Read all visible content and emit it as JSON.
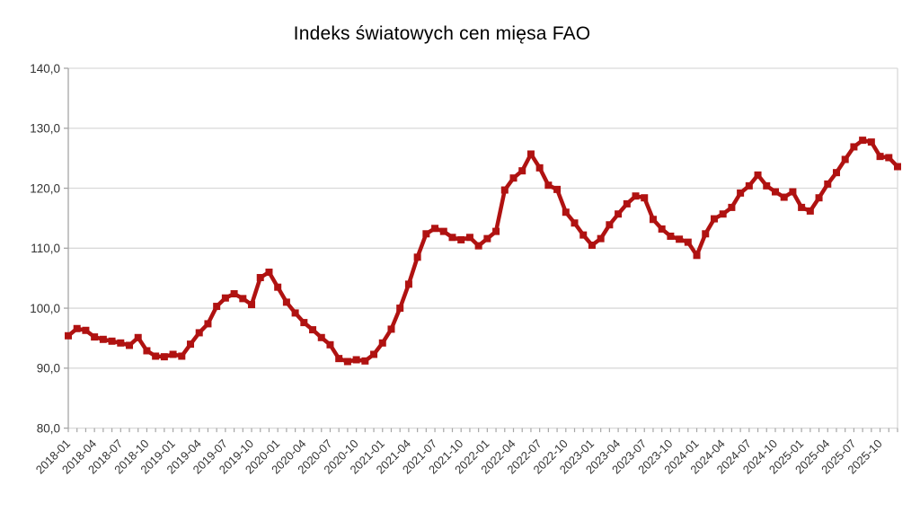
{
  "title": "Indeks światowych cen mięsa FAO",
  "chart_data": {
    "type": "line",
    "title": "Indeks światowych cen mięsa FAO",
    "x": [
      "2018-01",
      "2018-02",
      "2018-03",
      "2018-04",
      "2018-05",
      "2018-06",
      "2018-07",
      "2018-08",
      "2018-09",
      "2018-10",
      "2018-11",
      "2018-12",
      "2019-01",
      "2019-02",
      "2019-03",
      "2019-04",
      "2019-05",
      "2019-06",
      "2019-07",
      "2019-08",
      "2019-09",
      "2019-10",
      "2019-11",
      "2019-12",
      "2020-01",
      "2020-02",
      "2020-03",
      "2020-04",
      "2020-05",
      "2020-06",
      "2020-07",
      "2020-08",
      "2020-09",
      "2020-10",
      "2020-11",
      "2020-12",
      "2021-01",
      "2021-02",
      "2021-03",
      "2021-04",
      "2021-05",
      "2021-06",
      "2021-07",
      "2021-08",
      "2021-09",
      "2021-10",
      "2021-11",
      "2021-12",
      "2022-01",
      "2022-02",
      "2022-03",
      "2022-04",
      "2022-05",
      "2022-06",
      "2022-07",
      "2022-08",
      "2022-09",
      "2022-10",
      "2022-11",
      "2022-12",
      "2023-01",
      "2023-02",
      "2023-03",
      "2023-04",
      "2023-05",
      "2023-06",
      "2023-07",
      "2023-08",
      "2023-09",
      "2023-10",
      "2023-11",
      "2023-12",
      "2024-01",
      "2024-02",
      "2024-03",
      "2024-04",
      "2024-05",
      "2024-06",
      "2024-07",
      "2024-08",
      "2024-09",
      "2024-10",
      "2024-11",
      "2024-12",
      "2025-01",
      "2025-02",
      "2025-03",
      "2025-04",
      "2025-05",
      "2025-06",
      "2025-07",
      "2025-08",
      "2025-09",
      "2025-10",
      "2025-11",
      "2025-12"
    ],
    "values": [
      95.4,
      96.6,
      96.3,
      95.2,
      94.8,
      94.5,
      94.2,
      93.8,
      95.1,
      92.9,
      92.0,
      91.9,
      92.3,
      92.0,
      94.0,
      95.9,
      97.4,
      100.3,
      101.7,
      102.4,
      101.6,
      100.6,
      105.1,
      106.0,
      103.5,
      101.0,
      99.2,
      97.6,
      96.4,
      95.1,
      93.9,
      91.6,
      91.1,
      91.4,
      91.2,
      92.3,
      94.2,
      96.5,
      100.0,
      104.0,
      108.5,
      112.4,
      113.3,
      112.8,
      111.8,
      111.4,
      111.8,
      110.4,
      111.6,
      112.8,
      119.7,
      121.7,
      122.9,
      125.7,
      123.4,
      120.5,
      119.8,
      116.0,
      114.2,
      112.2,
      110.5,
      111.6,
      113.9,
      115.7,
      117.4,
      118.7,
      118.4,
      114.8,
      113.2,
      112.0,
      111.5,
      111.0,
      108.8,
      112.4,
      114.9,
      115.7,
      116.8,
      119.2,
      120.4,
      122.2,
      120.4,
      119.4,
      118.5,
      119.4,
      116.8,
      116.2,
      118.4,
      120.7,
      122.6,
      124.8,
      126.9,
      128.0,
      127.7,
      125.3,
      125.1,
      123.6
    ],
    "x_label_every": 3,
    "ylim": [
      80,
      140
    ],
    "y_ticks": [
      80,
      90,
      100,
      110,
      120,
      130,
      140
    ],
    "y_tick_labels": [
      "80,0",
      "90,0",
      "100,0",
      "110,0",
      "120,0",
      "130,0",
      "140,0"
    ],
    "grid": "horizontal",
    "legend": "none",
    "line_color": "#b01211",
    "marker": "square",
    "grid_color": "#d9d9d9",
    "axis_color": "#a6a6a6",
    "label_color": "#333333"
  }
}
